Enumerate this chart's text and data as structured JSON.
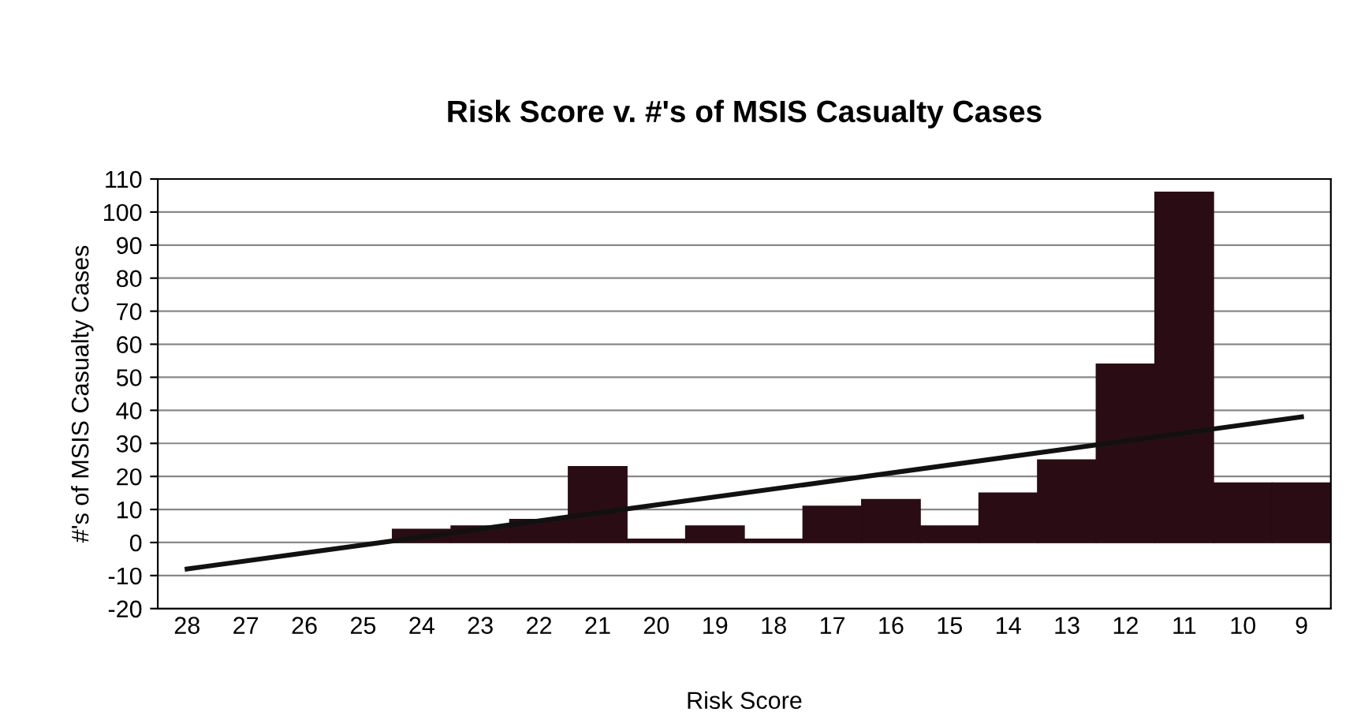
{
  "chart_data": {
    "type": "bar",
    "title": "Risk Score v. #'s of MSIS Casualty Cases",
    "xlabel": "Risk Score",
    "ylabel": "#'s of MSIS Casualty Cases",
    "categories": [
      "28",
      "27",
      "26",
      "25",
      "24",
      "23",
      "22",
      "21",
      "20",
      "19",
      "18",
      "17",
      "16",
      "15",
      "14",
      "13",
      "12",
      "11",
      "10",
      "9"
    ],
    "series": [
      {
        "color": "#2a0d14",
        "values": [
          null,
          null,
          null,
          null,
          4,
          5,
          7,
          23,
          1,
          5,
          1,
          11,
          13,
          5,
          15,
          25,
          54,
          106,
          18,
          18
        ]
      },
      {
        "type": "line",
        "color": "#111111",
        "x": [
          "28",
          "9"
        ],
        "values": [
          -8,
          38
        ]
      }
    ],
    "ylim": [
      -20,
      110
    ],
    "yticks": [
      -20,
      -10,
      0,
      10,
      20,
      30,
      40,
      50,
      60,
      70,
      80,
      90,
      100,
      110
    ],
    "grid": "y"
  }
}
